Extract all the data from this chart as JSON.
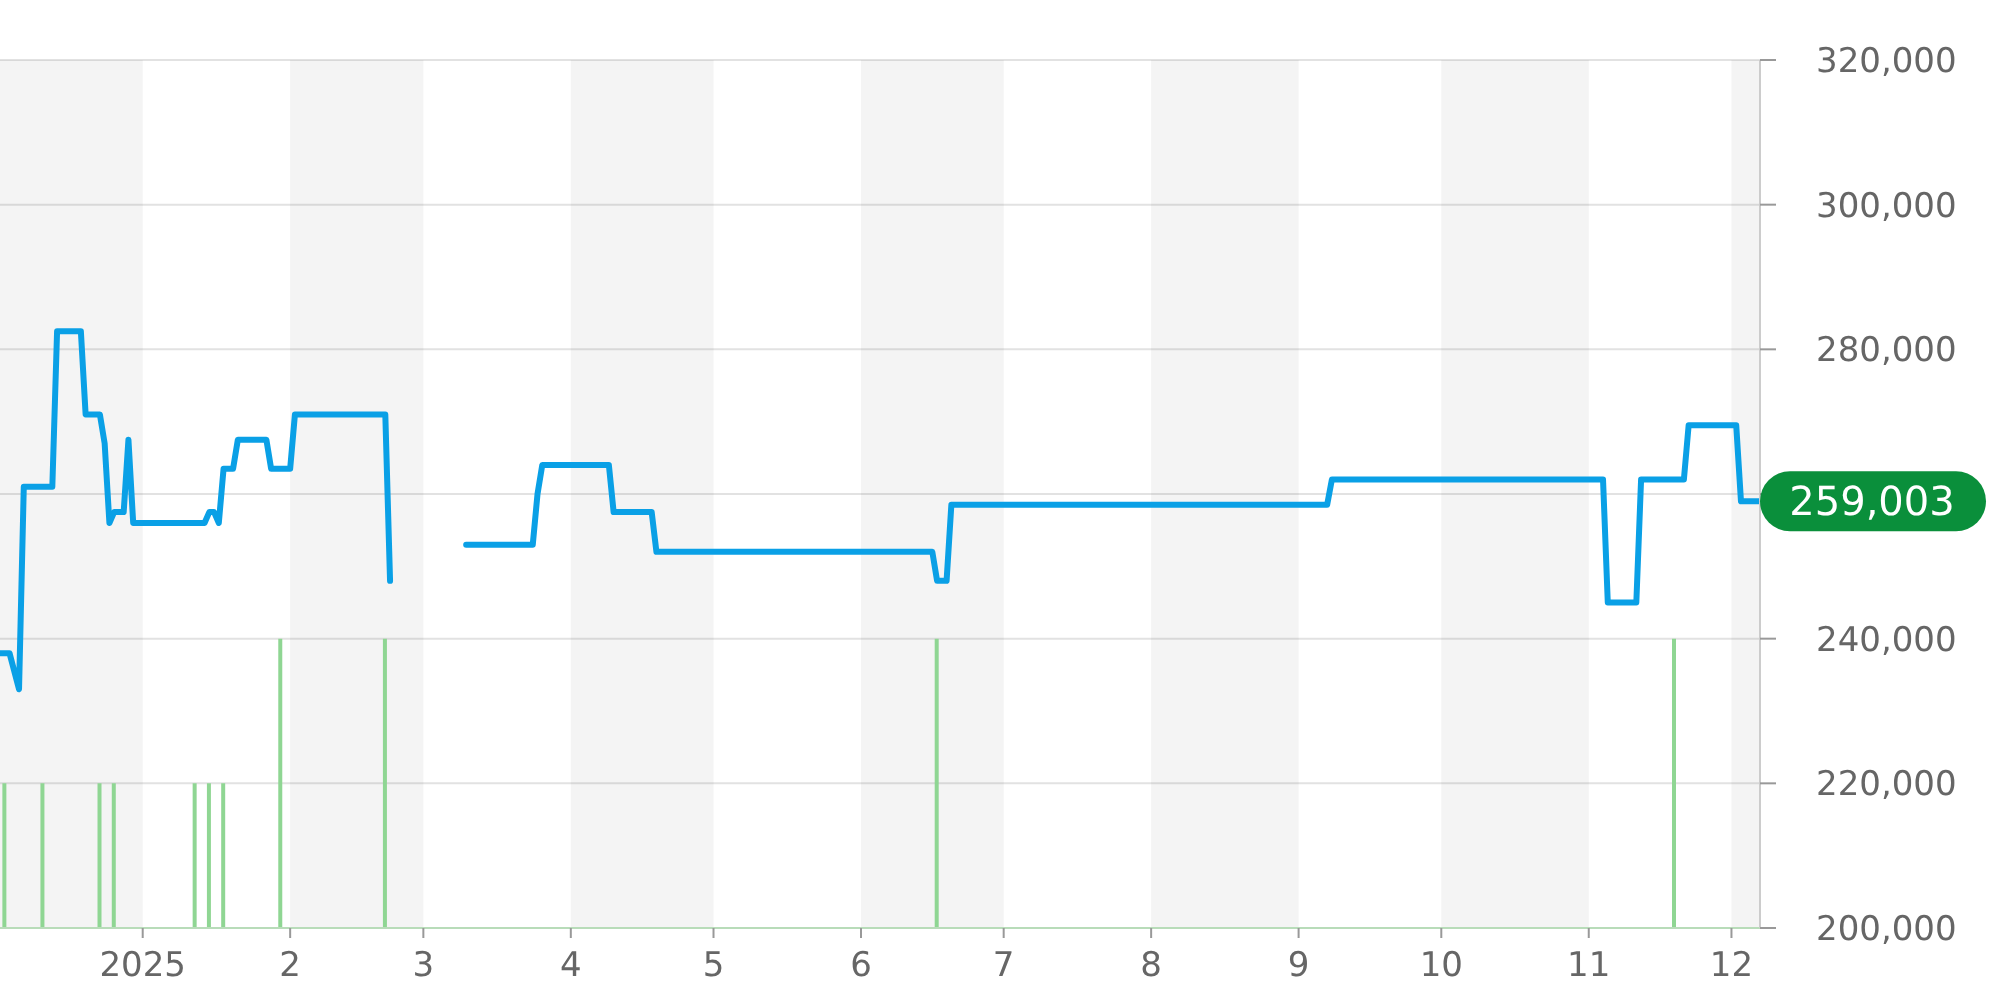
{
  "chart_data": {
    "type": "line",
    "xlim": [
      "2024-12-02",
      "2025-12-07"
    ],
    "xticks": [
      {
        "value": "2025-01-01",
        "label": "2025"
      },
      {
        "value": "2025-02-01",
        "label": "2"
      },
      {
        "value": "2025-03-01",
        "label": "3"
      },
      {
        "value": "2025-04-01",
        "label": "4"
      },
      {
        "value": "2025-05-01",
        "label": "5"
      },
      {
        "value": "2025-06-01",
        "label": "6"
      },
      {
        "value": "2025-07-01",
        "label": "7"
      },
      {
        "value": "2025-08-01",
        "label": "8"
      },
      {
        "value": "2025-09-01",
        "label": "9"
      },
      {
        "value": "2025-10-01",
        "label": "10"
      },
      {
        "value": "2025-11-01",
        "label": "11"
      },
      {
        "value": "2025-12-01",
        "label": "12"
      }
    ],
    "ylim": [
      200000,
      320000
    ],
    "yticks": [
      {
        "value": 200000,
        "label": "200,000"
      },
      {
        "value": 220000,
        "label": "220,000"
      },
      {
        "value": 240000,
        "label": "240,000"
      },
      {
        "value": 260000,
        "label": null
      },
      {
        "value": 280000,
        "label": "280,000"
      },
      {
        "value": 300000,
        "label": "300,000"
      },
      {
        "value": 320000,
        "label": "320,000"
      }
    ],
    "grid": "y",
    "bands": [
      {
        "axis": "x",
        "from": "2024-12-02",
        "to": "2025-01-01",
        "color": "#f4f4f4"
      },
      {
        "axis": "x",
        "from": "2025-02-01",
        "to": "2025-03-01",
        "color": "#f4f4f4"
      },
      {
        "axis": "x",
        "from": "2025-04-01",
        "to": "2025-05-01",
        "color": "#f4f4f4"
      },
      {
        "axis": "x",
        "from": "2025-06-01",
        "to": "2025-07-01",
        "color": "#f4f4f4"
      },
      {
        "axis": "x",
        "from": "2025-08-01",
        "to": "2025-09-01",
        "color": "#f4f4f4"
      },
      {
        "axis": "x",
        "from": "2025-10-01",
        "to": "2025-11-01",
        "color": "#f4f4f4"
      },
      {
        "axis": "x",
        "from": "2025-12-01",
        "to": "2025-12-07",
        "color": "#f4f4f4"
      }
    ],
    "annotations": [
      {
        "text": "259,003",
        "x": "2025-12-07",
        "y": 259003
      }
    ],
    "series": [
      {
        "color": "#0aa0e6",
        "x": [
          "2024-12-02",
          "2024-12-04",
          "2024-12-06",
          "2024-12-07",
          "2024-12-13",
          "2024-12-14",
          "2024-12-19",
          "2024-12-20",
          "2024-12-23",
          "2024-12-24",
          "2024-12-25",
          "2024-12-26",
          "2024-12-28",
          "2024-12-29",
          "2024-12-30",
          "2025-01-14",
          "2025-01-15",
          "2025-01-16",
          "2025-01-17",
          "2025-01-18",
          "2025-01-20",
          "2025-01-21",
          "2025-01-27",
          "2025-01-28",
          "2025-02-01",
          "2025-02-02",
          "2025-02-21",
          "2025-02-22",
          "2025-03-01",
          "2025-03-10",
          "2025-03-24",
          "2025-03-25",
          "2025-03-26",
          "2025-04-09",
          "2025-04-10",
          "2025-04-18",
          "2025-04-19",
          "2025-06-16",
          "2025-06-17",
          "2025-06-19",
          "2025-06-20",
          "2025-09-07",
          "2025-09-08",
          "2025-11-04",
          "2025-11-05",
          "2025-11-11",
          "2025-11-12",
          "2025-11-21",
          "2025-11-22",
          "2025-12-02",
          "2025-12-03",
          "2025-12-07"
        ],
        "values": [
          238000,
          238000,
          233000,
          261000,
          261000,
          282500,
          282500,
          271000,
          271000,
          267000,
          256000,
          257500,
          257500,
          267500,
          256000,
          256000,
          257500,
          257500,
          256000,
          263500,
          263500,
          267500,
          267500,
          263500,
          263500,
          271000,
          271000,
          248000,
          null,
          253000,
          253000,
          260000,
          264000,
          264000,
          257500,
          257500,
          252000,
          252000,
          248000,
          248000,
          258500,
          258500,
          262000,
          262000,
          245000,
          245000,
          262000,
          262000,
          269500,
          269500,
          259003,
          259003
        ]
      },
      {
        "type": "bar",
        "color": "#8fd693",
        "x": [
          "2024-12-03",
          "2024-12-11",
          "2024-12-23",
          "2024-12-26",
          "2025-01-12",
          "2025-01-15",
          "2025-01-18",
          "2025-01-30",
          "2025-02-21",
          "2025-06-17",
          "2025-11-19"
        ],
        "values": [
          220000,
          220000,
          220000,
          220000,
          220000,
          220000,
          220000,
          240000,
          240000,
          240000,
          240000
        ]
      }
    ]
  }
}
